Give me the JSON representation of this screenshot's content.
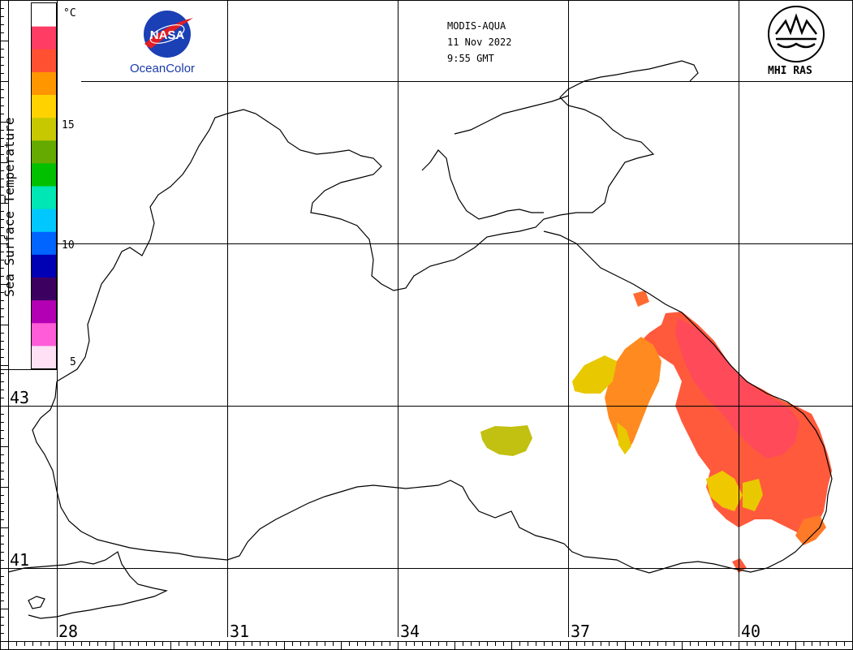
{
  "header": {
    "sensor": "MODIS-AQUA",
    "date": "11 Nov 2022",
    "time": "9:55 GMT"
  },
  "logos": {
    "nasa_text": "NASA",
    "oceancolor": "OceanColor",
    "mhi": "MHI RAS"
  },
  "scale": {
    "title": "Sea Surface Temperature",
    "unit": "°C",
    "ticks": [
      "15",
      "10",
      "5"
    ],
    "colors": [
      "#ffe0f4",
      "#ff5cd8",
      "#b400b4",
      "#3c0060",
      "#0000b4",
      "#0064ff",
      "#00c8ff",
      "#00e6b4",
      "#00c000",
      "#64aa00",
      "#c8c800",
      "#ffd200",
      "#ff9600",
      "#ff5032",
      "#ff3c64",
      "#ffffff"
    ]
  },
  "map": {
    "lat_labels": [
      "43",
      "41"
    ],
    "lon_labels": [
      "28",
      "31",
      "34",
      "37",
      "40"
    ],
    "colors": {
      "coast": "#000000",
      "warm": "#ff5a3c",
      "hot": "#ff4a5a",
      "mid": "#ff8a20",
      "cool": "#e8c800",
      "olive": "#c2c010"
    }
  }
}
